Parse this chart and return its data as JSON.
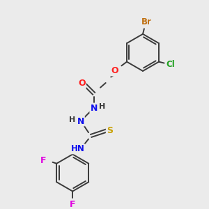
{
  "background_color": "#ebebeb",
  "bond_color": "#3a3a3a",
  "atom_colors": {
    "O": "#ff2020",
    "N": "#1010ee",
    "S": "#c8a000",
    "Cl": "#20a020",
    "Br": "#c07010",
    "F": "#e000e0",
    "H": "#3a3a3a",
    "C": "#3a3a3a"
  },
  "fig_width": 3.0,
  "fig_height": 3.0,
  "dpi": 100
}
